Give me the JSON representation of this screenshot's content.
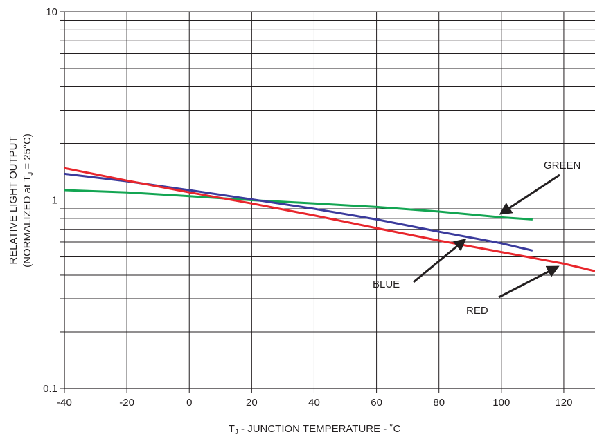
{
  "chart_data": {
    "type": "line",
    "xlabel": "T",
    "xlabel_sub": "J",
    "xlabel_rest": " - JUNCTION TEMPERATURE - ˚C",
    "ylabel_line1": "RELATIVE LIGHT OUTPUT",
    "ylabel_line2_pre": "(NORMALIZED at T",
    "ylabel_line2_sub": "J",
    "ylabel_line2_post": " = 25°C)",
    "x_ticks": [
      -40,
      -20,
      0,
      20,
      40,
      60,
      80,
      100,
      120
    ],
    "x_tick_labels": [
      "-40",
      "-20",
      "0",
      "20",
      "40",
      "60",
      "80",
      "100",
      "120"
    ],
    "xlim": [
      -40,
      130
    ],
    "y_scale": "log",
    "ylim": [
      0.1,
      10
    ],
    "y_tick_labels": [
      {
        "value": 0.1,
        "label": "0.1"
      },
      {
        "value": 1,
        "label": "1"
      },
      {
        "value": 10,
        "label": "10"
      }
    ],
    "grid": true,
    "series": [
      {
        "name": "GREEN",
        "color": "#13a552",
        "x": [
          -40,
          -20,
          0,
          20,
          40,
          60,
          80,
          100,
          110
        ],
        "y": [
          1.13,
          1.1,
          1.05,
          1.0,
          0.96,
          0.92,
          0.87,
          0.81,
          0.79
        ]
      },
      {
        "name": "BLUE",
        "color": "#3b3b9c",
        "x": [
          -40,
          -20,
          0,
          20,
          40,
          60,
          80,
          100,
          110
        ],
        "y": [
          1.38,
          1.26,
          1.13,
          1.01,
          0.9,
          0.79,
          0.68,
          0.59,
          0.54
        ]
      },
      {
        "name": "RED",
        "color": "#e8262c",
        "x": [
          -40,
          -20,
          0,
          20,
          40,
          60,
          80,
          100,
          120,
          130
        ],
        "y": [
          1.48,
          1.27,
          1.1,
          0.96,
          0.83,
          0.71,
          0.61,
          0.53,
          0.46,
          0.42
        ]
      }
    ],
    "annotations": [
      {
        "text": "GREEN",
        "arrow_to": [
          98,
          0.81
        ]
      },
      {
        "text": "BLUE",
        "arrow_to": [
          90,
          0.65
        ]
      },
      {
        "text": "RED",
        "arrow_to": [
          120,
          0.46
        ]
      }
    ]
  }
}
